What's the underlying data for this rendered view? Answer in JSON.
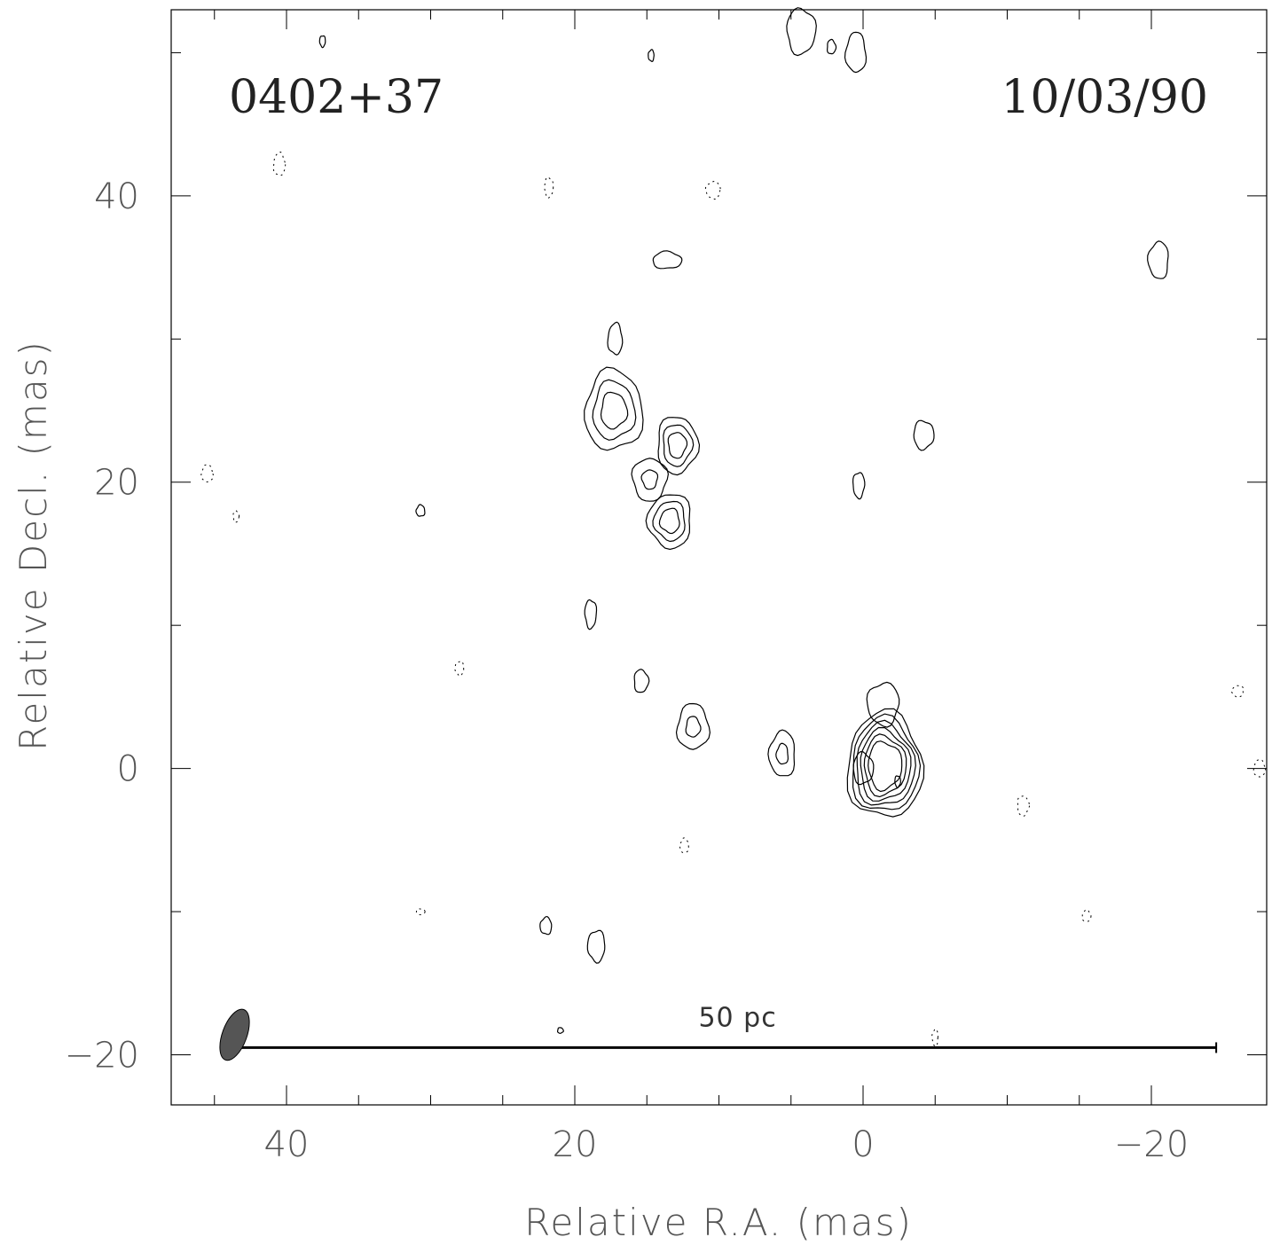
{
  "chart_data": {
    "type": "contour",
    "source_name": "0402+37",
    "epoch": "10/03/90",
    "xlabel": "Relative R.A. (mas)",
    "ylabel": "Relative Decl. (mas)",
    "xlim": [
      48,
      -28
    ],
    "ylim": [
      -23.5,
      53
    ],
    "x_reversed": true,
    "x_ticks": [
      40,
      20,
      0,
      -20
    ],
    "y_ticks": [
      40,
      20,
      0,
      -20
    ],
    "x_tick_labels": [
      "40",
      "20",
      "0",
      "−20"
    ],
    "y_tick_labels": [
      "40",
      "20",
      "0",
      "−20"
    ],
    "scale_bar": {
      "label": "50 pc",
      "x_start": 44,
      "x_end": -24.5,
      "y": -19.5
    },
    "beam": {
      "x": 43.6,
      "y": -18.6,
      "major_mas": 2.6,
      "minor_mas": 1.0,
      "pa_deg": 20,
      "fill": "#555555"
    },
    "contours": [
      {
        "name": "core",
        "levels": 6,
        "cx": -1.5,
        "cy": 0.2,
        "rx": 2.6,
        "ry": 3.7
      },
      {
        "name": "core-inner-peak",
        "levels": 1,
        "cx": 0.0,
        "cy": 0.0,
        "rx": 0.7,
        "ry": 1.1
      },
      {
        "name": "core-secondary",
        "levels": 1,
        "cx": -2.4,
        "cy": -0.9,
        "rx": 0.2,
        "ry": 0.4
      },
      {
        "name": "core-extension",
        "levels": 1,
        "cx": -1.4,
        "cy": 4.5,
        "rx": 1.1,
        "ry": 1.5
      },
      {
        "name": "knot-A",
        "levels": 2,
        "cx": 5.6,
        "cy": 1.0,
        "rx": 0.9,
        "ry": 1.6
      },
      {
        "name": "knot-B",
        "levels": 2,
        "cx": 11.8,
        "cy": 2.9,
        "rx": 1.1,
        "ry": 1.6
      },
      {
        "name": "knot-C",
        "levels": 1,
        "cx": 15.4,
        "cy": 6.1,
        "rx": 0.5,
        "ry": 0.8
      },
      {
        "name": "knot-D",
        "levels": 1,
        "cx": 18.9,
        "cy": 10.8,
        "rx": 0.4,
        "ry": 1.0
      },
      {
        "name": "knot-E",
        "levels": 1,
        "cx": 18.5,
        "cy": -12.4,
        "rx": 0.6,
        "ry": 1.1
      },
      {
        "name": "knot-F",
        "levels": 1,
        "cx": 22.0,
        "cy": -11.0,
        "rx": 0.4,
        "ry": 0.6
      },
      {
        "name": "jet-blob-1",
        "levels": 3,
        "cx": 17.3,
        "cy": 25.0,
        "rx": 2.0,
        "ry": 2.8
      },
      {
        "name": "jet-blob-2",
        "levels": 3,
        "cx": 12.9,
        "cy": 22.6,
        "rx": 1.4,
        "ry": 2.0
      },
      {
        "name": "jet-blob-3",
        "levels": 2,
        "cx": 14.8,
        "cy": 20.2,
        "rx": 1.2,
        "ry": 1.5
      },
      {
        "name": "jet-blob-4",
        "levels": 3,
        "cx": 13.4,
        "cy": 17.3,
        "rx": 1.5,
        "ry": 1.9
      },
      {
        "name": "knot-G",
        "levels": 1,
        "cx": 17.2,
        "cy": 30.0,
        "rx": 0.5,
        "ry": 1.1
      },
      {
        "name": "knot-H",
        "levels": 1,
        "cx": 13.6,
        "cy": 35.5,
        "rx": 1.0,
        "ry": 0.6
      },
      {
        "name": "knot-I",
        "levels": 1,
        "cx": -4.2,
        "cy": 23.3,
        "rx": 0.7,
        "ry": 1.0
      },
      {
        "name": "knot-J",
        "levels": 1,
        "cx": 0.3,
        "cy": 19.8,
        "rx": 0.4,
        "ry": 0.9
      },
      {
        "name": "knot-K",
        "levels": 1,
        "cx": -20.5,
        "cy": 35.5,
        "rx": 0.7,
        "ry": 1.3
      },
      {
        "name": "knot-L",
        "levels": 1,
        "cx": 0.5,
        "cy": 50.0,
        "rx": 0.7,
        "ry": 1.4
      },
      {
        "name": "knot-M",
        "levels": 1,
        "cx": 2.2,
        "cy": 50.4,
        "rx": 0.3,
        "ry": 0.5
      },
      {
        "name": "knot-N",
        "levels": 1,
        "cx": 4.3,
        "cy": 51.5,
        "rx": 1.0,
        "ry": 1.6
      },
      {
        "name": "knot-O",
        "levels": 1,
        "cx": 37.5,
        "cy": 50.8,
        "rx": 0.2,
        "ry": 0.4
      },
      {
        "name": "knot-P",
        "levels": 1,
        "cx": 14.7,
        "cy": 49.8,
        "rx": 0.2,
        "ry": 0.4
      },
      {
        "name": "knot-Q",
        "levels": 1,
        "cx": 30.7,
        "cy": 18.0,
        "rx": 0.3,
        "ry": 0.4
      },
      {
        "name": "knot-R",
        "levels": 1,
        "cx": 21.0,
        "cy": -18.3,
        "rx": 0.2,
        "ry": 0.2
      }
    ],
    "negative_contours": [
      {
        "cx": 40.5,
        "cy": 42.2,
        "rx": 0.4,
        "ry": 0.8
      },
      {
        "cx": 21.8,
        "cy": 40.6,
        "rx": 0.3,
        "ry": 0.7
      },
      {
        "cx": 10.4,
        "cy": 40.4,
        "rx": 0.5,
        "ry": 0.6
      },
      {
        "cx": 45.5,
        "cy": 20.6,
        "rx": 0.4,
        "ry": 0.6
      },
      {
        "cx": 43.5,
        "cy": 17.6,
        "rx": 0.2,
        "ry": 0.4
      },
      {
        "cx": 28.0,
        "cy": 7.0,
        "rx": 0.3,
        "ry": 0.5
      },
      {
        "cx": 12.4,
        "cy": -5.4,
        "rx": 0.3,
        "ry": 0.5
      },
      {
        "cx": -11.1,
        "cy": -2.6,
        "rx": 0.4,
        "ry": 0.7
      },
      {
        "cx": -26.0,
        "cy": 5.4,
        "rx": 0.4,
        "ry": 0.4
      },
      {
        "cx": -15.5,
        "cy": -10.3,
        "rx": 0.3,
        "ry": 0.4
      },
      {
        "cx": 30.7,
        "cy": -10.0,
        "rx": 0.3,
        "ry": 0.2
      },
      {
        "cx": -5.0,
        "cy": -18.8,
        "rx": 0.2,
        "ry": 0.6
      },
      {
        "cx": -27.5,
        "cy": 0.0,
        "rx": 0.4,
        "ry": 0.6
      }
    ]
  }
}
